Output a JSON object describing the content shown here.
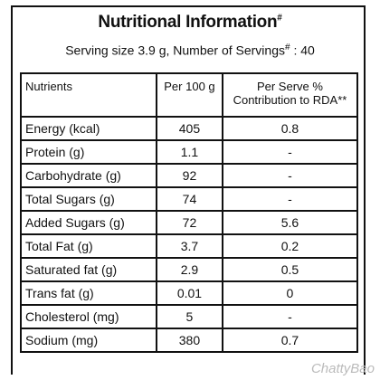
{
  "header": {
    "title": "Nutritional Information",
    "title_mark": "#",
    "serving": "Serving size 3.9 g, Number of Servings",
    "serving_mark": "#",
    "serving_count": ": 40"
  },
  "table": {
    "headers": [
      "Nutrients",
      "Per 100 g",
      [
        "Per Serve %",
        "Contribution to RDA**"
      ]
    ],
    "rows": [
      [
        "Energy (kcal)",
        "405",
        "0.8"
      ],
      [
        "Protein (g)",
        "1.1",
        "-"
      ],
      [
        "Carbohydrate (g)",
        "92",
        "-"
      ],
      [
        "Total Sugars (g)",
        "74",
        "-"
      ],
      [
        "Added Sugars (g)",
        "72",
        "5.6"
      ],
      [
        "Total Fat (g)",
        "3.7",
        "0.2"
      ],
      [
        "Saturated fat (g)",
        "2.9",
        "0.5"
      ],
      [
        "Trans fat (g)",
        "0.01",
        "0"
      ],
      [
        "Cholesterol (mg)",
        "5",
        "-"
      ],
      [
        "Sodium (mg)",
        "380",
        "0.7"
      ]
    ]
  },
  "watermark": "ChattyBao"
}
